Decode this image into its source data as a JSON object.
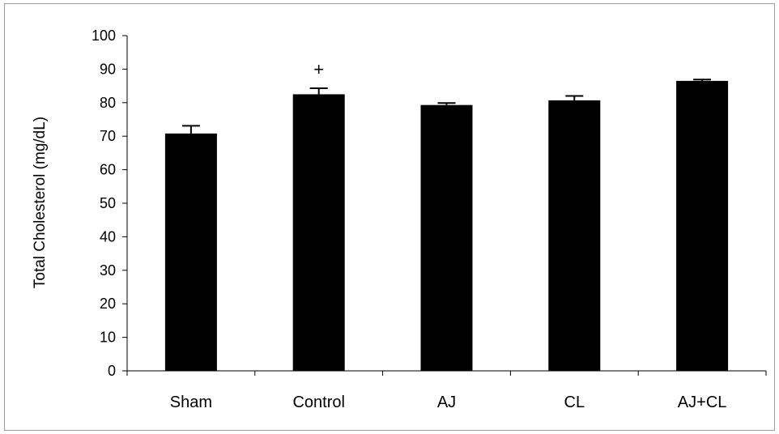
{
  "chart_data": {
    "type": "bar",
    "categories": [
      "Sham",
      "Control",
      "AJ",
      "CL",
      "AJ+CL"
    ],
    "values": [
      70.8,
      82.5,
      79.3,
      80.7,
      86.5
    ],
    "errors": [
      2.3,
      1.8,
      0.6,
      1.3,
      0.4
    ],
    "ylabel": "Total Cholesterol (mg/dL)",
    "ylim": [
      0,
      100
    ],
    "yticks": [
      0,
      10,
      20,
      30,
      40,
      50,
      60,
      70,
      80,
      90,
      100
    ],
    "grid": false,
    "annotations": [
      {
        "category": "Control",
        "text": "+"
      }
    ],
    "bar_color": "#000000"
  }
}
